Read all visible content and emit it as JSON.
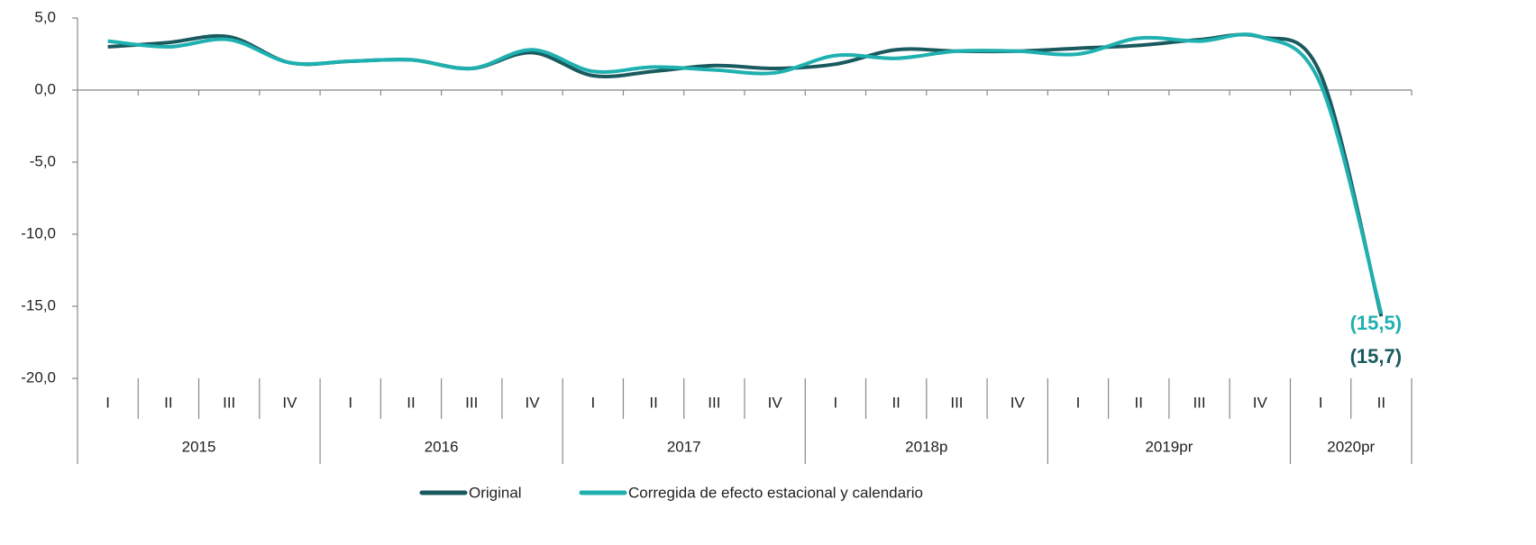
{
  "chart_data": {
    "type": "line",
    "groups": [
      {
        "name": "2015",
        "categories": [
          "I",
          "II",
          "III",
          "IV"
        ]
      },
      {
        "name": "2016",
        "categories": [
          "I",
          "II",
          "III",
          "IV"
        ]
      },
      {
        "name": "2017",
        "categories": [
          "I",
          "II",
          "III",
          "IV"
        ]
      },
      {
        "name": "2018p",
        "categories": [
          "I",
          "II",
          "III",
          "IV"
        ]
      },
      {
        "name": "2019pr",
        "categories": [
          "I",
          "II",
          "III",
          "IV"
        ]
      },
      {
        "name": "2020pr",
        "categories": [
          "I",
          "II"
        ]
      }
    ],
    "series": [
      {
        "name": "Original",
        "color": "#1a5a5f",
        "values": [
          3.0,
          3.3,
          3.7,
          1.9,
          2.0,
          2.1,
          1.5,
          2.6,
          1.0,
          1.3,
          1.7,
          1.5,
          1.8,
          2.8,
          2.7,
          2.7,
          2.9,
          3.1,
          3.5,
          3.7,
          1.1,
          -15.7
        ],
        "value_labels": [
          null,
          null,
          null,
          null,
          null,
          null,
          null,
          null,
          null,
          null,
          null,
          null,
          null,
          null,
          null,
          null,
          null,
          null,
          null,
          null,
          null,
          "(15,7)"
        ]
      },
      {
        "name": "Corregida de efecto estacional y calendario",
        "color": "#1fb0b0",
        "values": [
          3.4,
          3.0,
          3.5,
          1.9,
          2.0,
          2.1,
          1.5,
          2.8,
          1.3,
          1.6,
          1.4,
          1.2,
          2.4,
          2.2,
          2.7,
          2.7,
          2.5,
          3.6,
          3.4,
          3.7,
          0.4,
          -15.5
        ],
        "value_labels": [
          null,
          null,
          null,
          null,
          null,
          null,
          null,
          null,
          null,
          null,
          null,
          null,
          null,
          null,
          null,
          null,
          null,
          null,
          null,
          null,
          null,
          "(15,5)"
        ]
      }
    ],
    "ylim": [
      -20,
      5
    ],
    "yticks": [
      {
        "value": -20,
        "label": "-20,0"
      },
      {
        "value": -15,
        "label": "-15,0"
      },
      {
        "value": -10,
        "label": "-10,0"
      },
      {
        "value": -5,
        "label": "-5,0"
      },
      {
        "value": 0,
        "label": "0,0"
      },
      {
        "value": 5,
        "label": "5,0"
      }
    ]
  }
}
